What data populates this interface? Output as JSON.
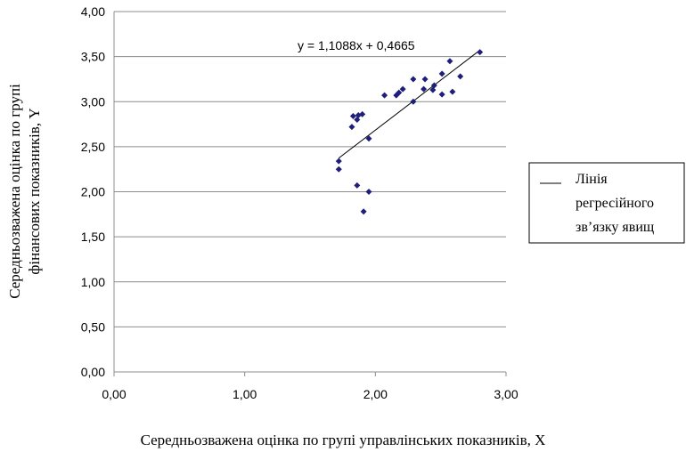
{
  "chart_data": {
    "type": "scatter",
    "title": "",
    "xlabel": "Середньозважена оцінка по групі управлінських показників, X",
    "ylabel_lines": [
      "Середньозважена оцінка по групі",
      "фінансових показників, Y"
    ],
    "xlim": [
      0,
      3
    ],
    "ylim": [
      0,
      4
    ],
    "x_ticks": [
      "0,00",
      "1,00",
      "2,00",
      "3,00"
    ],
    "y_ticks": [
      "0,00",
      "0,50",
      "1,00",
      "1,50",
      "2,00",
      "2,50",
      "3,00",
      "3,50",
      "4,00"
    ],
    "grid": "horizontal",
    "trendline": {
      "equation": "y = 1,1088x + 0,4665",
      "slope": 1.1088,
      "intercept": 0.4665,
      "x_range": [
        1.72,
        2.8
      ]
    },
    "legend": {
      "position": "right",
      "lines": [
        "Лінія",
        "регресійного",
        "зв’язку явищ"
      ]
    },
    "marker_color": "#1f1f7a",
    "points": [
      [
        1.72,
        2.34
      ],
      [
        1.72,
        2.25
      ],
      [
        1.82,
        2.72
      ],
      [
        1.83,
        2.84
      ],
      [
        1.86,
        2.8
      ],
      [
        1.87,
        2.85
      ],
      [
        1.86,
        2.07
      ],
      [
        1.9,
        2.86
      ],
      [
        1.91,
        1.78
      ],
      [
        1.95,
        2.59
      ],
      [
        1.95,
        2.0
      ],
      [
        2.07,
        3.07
      ],
      [
        2.16,
        3.07
      ],
      [
        2.18,
        3.1
      ],
      [
        2.21,
        3.14
      ],
      [
        2.29,
        3.25
      ],
      [
        2.29,
        3.0
      ],
      [
        2.37,
        3.14
      ],
      [
        2.38,
        3.25
      ],
      [
        2.45,
        3.18
      ],
      [
        2.44,
        3.13
      ],
      [
        2.51,
        3.31
      ],
      [
        2.51,
        3.08
      ],
      [
        2.57,
        3.45
      ],
      [
        2.59,
        3.11
      ],
      [
        2.65,
        3.28
      ],
      [
        2.8,
        3.55
      ]
    ]
  }
}
